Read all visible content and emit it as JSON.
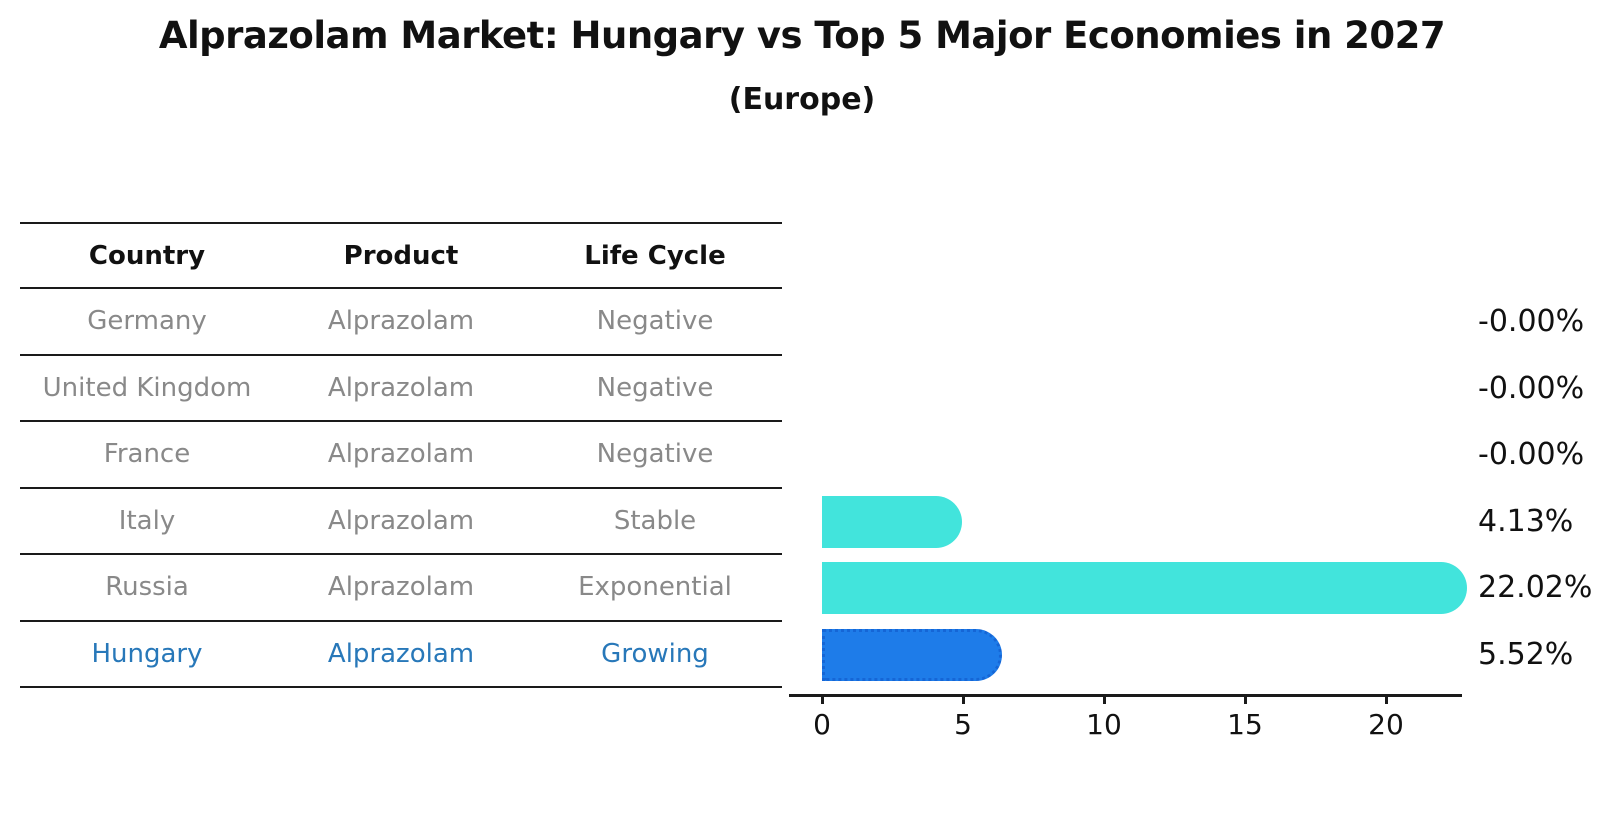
{
  "title": "Alprazolam Market: Hungary vs Top 5 Major Economies in 2027",
  "subtitle": "(Europe)",
  "table": {
    "headers": [
      "Country",
      "Product",
      "Life Cycle"
    ],
    "rows": [
      {
        "country": "Germany",
        "product": "Alprazolam",
        "life_cycle": "Negative"
      },
      {
        "country": "United Kingdom",
        "product": "Alprazolam",
        "life_cycle": "Negative"
      },
      {
        "country": "France",
        "product": "Alprazolam",
        "life_cycle": "Negative"
      },
      {
        "country": "Italy",
        "product": "Alprazolam",
        "life_cycle": "Stable"
      },
      {
        "country": "Russia",
        "product": "Alprazolam",
        "life_cycle": "Exponential"
      },
      {
        "country": "Hungary",
        "product": "Alprazolam",
        "life_cycle": "Growing"
      }
    ]
  },
  "chart_data": {
    "type": "bar",
    "orientation": "horizontal",
    "title": "Alprazolam Market: Hungary vs Top 5 Major Economies in 2027",
    "subtitle": "(Europe)",
    "categories": [
      "Germany",
      "United Kingdom",
      "France",
      "Italy",
      "Russia",
      "Hungary"
    ],
    "values": [
      -0.0,
      -0.0,
      -0.0,
      4.13,
      22.02,
      5.52
    ],
    "value_labels": [
      "-0.00%",
      "-0.00%",
      "-0.00%",
      "4.13%",
      "22.02%",
      "5.52%"
    ],
    "highlight_index": 5,
    "x_ticks": [
      0,
      5,
      10,
      15,
      20
    ],
    "x_tick_labels": [
      "0",
      "5",
      "10",
      "15",
      "20"
    ],
    "xlim": [
      0,
      22.7
    ],
    "grid": false,
    "legend": false,
    "colors": {
      "bar_default": "#42e4dc",
      "bar_highlight": "#1e7ce9",
      "bar_highlight_border": "#1566d6",
      "highlight_text": "#2878b9",
      "table_text": "#898989",
      "heading_text": "#111111"
    }
  }
}
